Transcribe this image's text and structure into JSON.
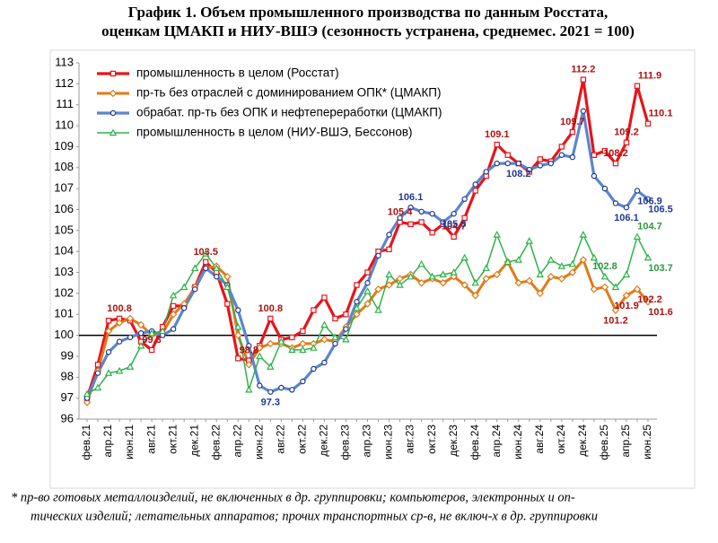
{
  "chart_data": {
    "type": "line",
    "title": [
      "График 1. Объем промышленного производства по данным Росстата,",
      "оценкам ЦМАКП и НИУ-ВШЭ (сезонность устранена, среднемес. 2021 = 100)"
    ],
    "footnote": [
      "* пр-во готовых металлоизделий, не включенных в др. группировки; компьютеров, электронных и оп-",
      "тических изделий; летательных аппаратов; прочих транспортных ср-в, не включ-х в др. группировки"
    ],
    "categories": [
      "фев.21",
      null,
      "апр.21",
      null,
      "июн.21",
      null,
      "авг.21",
      null,
      "окт.21",
      null,
      "дек.21",
      null,
      "фев.22",
      null,
      "апр.22",
      null,
      "июн.22",
      null,
      "авг.22",
      null,
      "окт.22",
      null,
      "дек.22",
      null,
      "фев.23",
      null,
      "апр.23",
      null,
      "июн.23",
      null,
      "авг.23",
      null,
      "окт.23",
      null,
      "дек.23",
      null,
      "фев.24",
      null,
      "апр.24",
      null,
      "июн.24",
      null,
      "авг.24",
      null,
      "окт.24",
      null,
      "дек.24",
      null,
      "фев.25",
      null,
      "апр.25",
      null,
      "июн.25"
    ],
    "ylim": [
      96,
      113
    ],
    "yticks": [
      96,
      97,
      98,
      99,
      100,
      101,
      102,
      103,
      104,
      105,
      106,
      107,
      108,
      109,
      110,
      111,
      112,
      113
    ],
    "hline": 100,
    "legend": "upper left",
    "series": [
      {
        "name": "промышленность в целом (Росстат)",
        "color": "#e8141a",
        "label_color": "#b01010",
        "marker": "square",
        "values": [
          97.0,
          98.6,
          100.7,
          100.8,
          100.7,
          99.7,
          99.3,
          100.4,
          101.4,
          101.4,
          102.3,
          103.5,
          103.0,
          101.5,
          98.9,
          98.8,
          99.5,
          100.8,
          99.8,
          99.9,
          100.2,
          101.2,
          101.8,
          100.8,
          101.0,
          102.4,
          103.0,
          104.0,
          104.1,
          105.4,
          105.3,
          105.4,
          104.9,
          105.3,
          104.7,
          105.6,
          106.9,
          107.6,
          109.1,
          108.6,
          108.2,
          107.8,
          108.4,
          108.3,
          109.0,
          109.7,
          112.2,
          108.6,
          108.8,
          108.2,
          109.2,
          111.9,
          110.1
        ],
        "value_labels": [
          null,
          null,
          null,
          "100.8",
          null,
          null,
          "99.3",
          null,
          null,
          null,
          null,
          "103.5",
          null,
          null,
          null,
          "98.8",
          null,
          "100.8",
          null,
          null,
          null,
          null,
          null,
          null,
          null,
          null,
          null,
          null,
          null,
          "105.4",
          null,
          null,
          null,
          null,
          "104.7",
          null,
          null,
          null,
          "109.1",
          null,
          null,
          null,
          null,
          null,
          null,
          "109.7",
          "112.2",
          null,
          null,
          "108.2",
          "109.2",
          "111.9",
          "110.1"
        ]
      },
      {
        "name": "пр-ть без отраслей с доминированием ОПК* (ЦМАКП)",
        "color": "#e07b1a",
        "label_color": "#b01010",
        "marker": "diamond",
        "values": [
          96.8,
          98.3,
          100.2,
          100.6,
          100.8,
          100.5,
          100.0,
          100.1,
          101.0,
          101.5,
          102.3,
          103.2,
          103.3,
          102.8,
          100.0,
          98.6,
          99.4,
          99.6,
          99.6,
          99.4,
          99.6,
          99.6,
          99.8,
          99.7,
          100.4,
          101.0,
          101.5,
          102.2,
          102.4,
          102.7,
          102.9,
          102.5,
          102.7,
          102.5,
          102.8,
          102.4,
          101.9,
          102.7,
          102.9,
          103.5,
          102.5,
          102.6,
          102.0,
          102.8,
          102.7,
          103.0,
          103.6,
          102.2,
          102.3,
          101.2,
          101.9,
          102.2,
          101.6
        ],
        "value_labels": [
          null,
          null,
          null,
          null,
          null,
          null,
          null,
          null,
          null,
          null,
          null,
          null,
          null,
          null,
          null,
          null,
          null,
          null,
          null,
          null,
          null,
          null,
          null,
          null,
          null,
          null,
          null,
          null,
          null,
          null,
          null,
          null,
          null,
          null,
          null,
          null,
          null,
          null,
          null,
          null,
          null,
          null,
          null,
          null,
          null,
          null,
          null,
          null,
          null,
          "101.2",
          "101.9",
          "102.2",
          "101.6"
        ]
      },
      {
        "name": "обрабат. пр-ть без ОПК и нефтепереработки (ЦМАКП)",
        "color": "#5b86cf",
        "label_color": "#1f3a93",
        "marker": "circle",
        "values": [
          97.0,
          98.2,
          99.2,
          99.7,
          99.9,
          100.1,
          100.2,
          100.0,
          100.3,
          101.3,
          102.2,
          103.2,
          102.8,
          102.4,
          101.2,
          99.5,
          97.6,
          97.3,
          97.5,
          97.4,
          97.8,
          98.4,
          98.7,
          99.6,
          100.3,
          101.6,
          102.5,
          103.8,
          104.8,
          105.6,
          106.1,
          105.9,
          105.8,
          105.4,
          105.8,
          106.5,
          107.2,
          107.8,
          108.2,
          108.2,
          108.2,
          107.9,
          108.1,
          108.2,
          108.6,
          108.5,
          110.7,
          107.6,
          107.0,
          106.3,
          106.1,
          106.9,
          106.5
        ],
        "value_labels": [
          null,
          null,
          null,
          null,
          null,
          null,
          null,
          null,
          null,
          null,
          null,
          null,
          null,
          null,
          null,
          null,
          null,
          "97.3",
          null,
          null,
          null,
          null,
          null,
          null,
          null,
          null,
          null,
          null,
          null,
          null,
          "106.1",
          null,
          null,
          null,
          "105.8",
          null,
          null,
          null,
          null,
          null,
          "108.2",
          null,
          null,
          null,
          null,
          null,
          null,
          null,
          null,
          null,
          "106.1",
          "106.9",
          "106.5"
        ]
      },
      {
        "name": "промышленность в целом (НИУ-ВШЭ, Бессонов)",
        "color": "#2db34a",
        "label_color": "#2a9a3c",
        "marker": "triangle",
        "values": [
          97.2,
          97.5,
          98.2,
          98.3,
          98.5,
          99.5,
          100.1,
          100.2,
          101.9,
          102.3,
          103.2,
          103.9,
          103.2,
          102.3,
          100.4,
          97.4,
          99.0,
          98.5,
          99.7,
          99.3,
          99.3,
          99.4,
          100.5,
          99.9,
          99.8,
          101.3,
          102.1,
          101.2,
          102.9,
          102.4,
          102.8,
          103.4,
          102.8,
          102.9,
          103.0,
          103.7,
          102.5,
          103.2,
          104.8,
          103.5,
          103.6,
          104.5,
          102.9,
          103.6,
          103.3,
          103.4,
          104.8,
          103.7,
          102.8,
          102.3,
          102.9,
          104.7,
          103.7
        ],
        "value_labels": [
          null,
          null,
          null,
          null,
          null,
          null,
          null,
          null,
          null,
          null,
          null,
          null,
          null,
          null,
          null,
          null,
          null,
          null,
          null,
          null,
          null,
          null,
          null,
          null,
          null,
          null,
          null,
          null,
          null,
          null,
          null,
          null,
          null,
          null,
          null,
          null,
          null,
          null,
          null,
          null,
          null,
          null,
          null,
          null,
          null,
          null,
          null,
          null,
          "102.8",
          null,
          null,
          "104.7",
          "103.7"
        ]
      }
    ]
  }
}
